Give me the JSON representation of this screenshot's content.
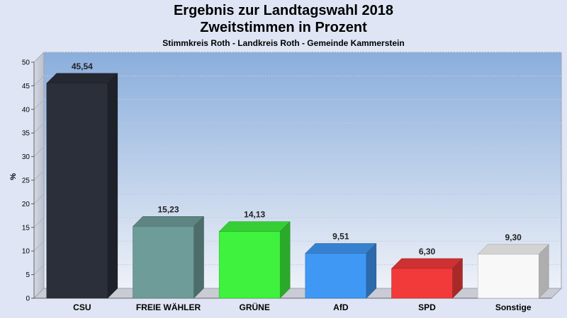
{
  "chart_data": {
    "type": "bar",
    "title": "Ergebnis zur Landtagswahl 2018",
    "subtitle_line": "Zweitstimmen in Prozent",
    "subtitle": "Stimmkreis Roth - Landkreis Roth - Gemeinde Kammerstein",
    "ylabel": "%",
    "ylim": [
      0,
      50
    ],
    "yticks": [
      "0",
      "5",
      "10",
      "15",
      "20",
      "25",
      "30",
      "35",
      "40",
      "45",
      "50"
    ],
    "categories": [
      "CSU",
      "FREIE WÄHLER",
      "GRÜNE",
      "AfD",
      "SPD",
      "Sonstige"
    ],
    "values": [
      45.54,
      15.23,
      14.13,
      9.51,
      6.3,
      9.3
    ],
    "value_labels": [
      "45,54",
      "15,23",
      "14,13",
      "9,51",
      "6,30",
      "9,30"
    ],
    "colors": [
      "#2b2f3a",
      "#6e9c98",
      "#3ef23e",
      "#3f98f4",
      "#f23a3a",
      "#f8f8f8"
    ],
    "grid": true,
    "legend": "none"
  }
}
